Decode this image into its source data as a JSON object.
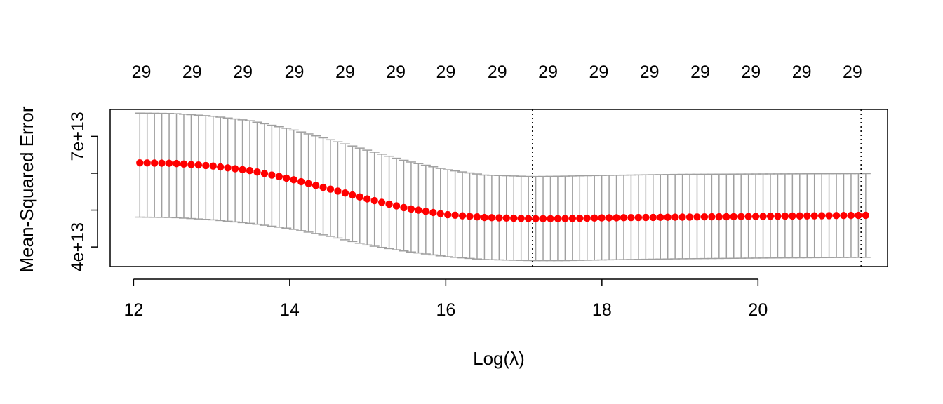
{
  "chart_data": {
    "type": "scatter",
    "xlabel": "Log(λ)",
    "ylabel": "Mean-Squared Error",
    "xlim": [
      11.7,
      21.66
    ],
    "ylim": [
      34700000000000.0,
      77300000000000.0
    ],
    "x_ticks": [
      {
        "value": 12,
        "label": "12"
      },
      {
        "value": 14,
        "label": "14"
      },
      {
        "value": 16,
        "label": "16"
      },
      {
        "value": 18,
        "label": "18"
      },
      {
        "value": 20,
        "label": "20"
      }
    ],
    "y_ticks": [
      {
        "value": 40000000000000.0,
        "label": "4e+13"
      },
      {
        "value": 50000000000000.0,
        "label": ""
      },
      {
        "value": 60000000000000.0,
        "label": ""
      },
      {
        "value": 70000000000000.0,
        "label": "7e+13"
      }
    ],
    "top_axis": {
      "values": [
        12.1,
        12.75,
        13.4,
        14.06,
        14.71,
        15.36,
        16.0,
        16.66,
        17.31,
        17.96,
        18.61,
        19.26,
        19.91,
        20.56,
        21.21
      ],
      "labels": [
        "29",
        "29",
        "29",
        "29",
        "29",
        "29",
        "29",
        "29",
        "29",
        "29",
        "29",
        "29",
        "29",
        "29",
        "29"
      ]
    },
    "vlines": [
      17.11,
      21.32
    ],
    "curve": {
      "x_min": 12.08,
      "x_max": 21.38,
      "count": 100,
      "mean_keypoints": [
        [
          12.08,
          62800000000000.0
        ],
        [
          12.5,
          62700000000000.0
        ],
        [
          13.0,
          62000000000000.0
        ],
        [
          13.5,
          60700000000000.0
        ],
        [
          14.0,
          58500000000000.0
        ],
        [
          14.5,
          55800000000000.0
        ],
        [
          15.0,
          53000000000000.0
        ],
        [
          15.5,
          50500000000000.0
        ],
        [
          16.0,
          48800000000000.0
        ],
        [
          16.5,
          48000000000000.0
        ],
        [
          17.11,
          47700000000000.0
        ],
        [
          17.5,
          47700000000000.0
        ],
        [
          18.0,
          47900000000000.0
        ],
        [
          19.0,
          48100000000000.0
        ],
        [
          20.0,
          48300000000000.0
        ],
        [
          21.38,
          48600000000000.0
        ]
      ],
      "upper_keypoints": [
        [
          12.08,
          76300000000000.0
        ],
        [
          12.5,
          76200000000000.0
        ],
        [
          13.0,
          75500000000000.0
        ],
        [
          13.5,
          74200000000000.0
        ],
        [
          14.0,
          72000000000000.0
        ],
        [
          14.5,
          69200000000000.0
        ],
        [
          15.0,
          66200000000000.0
        ],
        [
          15.5,
          63300000000000.0
        ],
        [
          16.0,
          61000000000000.0
        ],
        [
          16.5,
          59500000000000.0
        ],
        [
          17.11,
          59100000000000.0
        ],
        [
          17.5,
          59200000000000.0
        ],
        [
          18.0,
          59400000000000.0
        ],
        [
          19.0,
          59700000000000.0
        ],
        [
          20.0,
          59800000000000.0
        ],
        [
          21.38,
          59900000000000.0
        ]
      ],
      "lower_keypoints": [
        [
          12.08,
          48100000000000.0
        ],
        [
          12.5,
          48000000000000.0
        ],
        [
          13.0,
          47400000000000.0
        ],
        [
          13.5,
          46400000000000.0
        ],
        [
          14.0,
          45000000000000.0
        ],
        [
          14.5,
          43000000000000.0
        ],
        [
          15.0,
          40500000000000.0
        ],
        [
          15.5,
          38800000000000.0
        ],
        [
          16.0,
          37400000000000.0
        ],
        [
          16.5,
          36600000000000.0
        ],
        [
          17.11,
          36300000000000.0
        ],
        [
          17.5,
          36300000000000.0
        ],
        [
          18.0,
          36500000000000.0
        ],
        [
          19.0,
          36800000000000.0
        ],
        [
          20.0,
          37000000000000.0
        ],
        [
          21.38,
          37200000000000.0
        ]
      ]
    },
    "colors": {
      "points": "#ff0000",
      "error_bars": "#a0a0a0",
      "axes": "#000000",
      "vlines": "#000000"
    },
    "grid": false,
    "legend": "none"
  }
}
